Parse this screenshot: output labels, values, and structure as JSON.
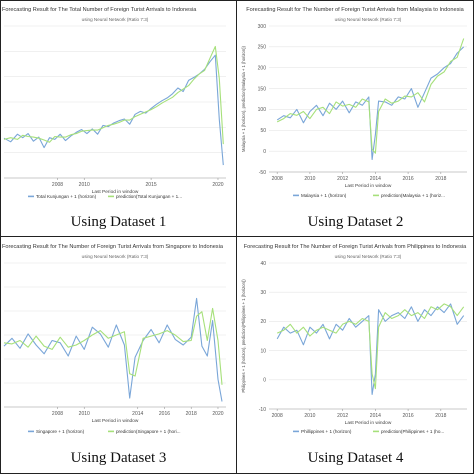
{
  "colors": {
    "series_actual": "#7aa6d8",
    "series_prediction": "#a6e07a",
    "grid": "#e6e6e6",
    "text": "#333333"
  },
  "panels": [
    {
      "caption": "Using Dataset 1"
    },
    {
      "caption": "Using Dataset 2"
    },
    {
      "caption": "Using Dataset 3"
    },
    {
      "caption": "Using Dataset 4"
    }
  ],
  "chart_data": [
    {
      "type": "line",
      "title": "Forecasting Result for The Total Number of Foreign Turist Arrivals to Indonesia",
      "subtitle": "using Neural Network (Ratio 7:3)",
      "xlabel": "Last Period in window",
      "ylabel": "",
      "xlim": [
        2004,
        2020.6
      ],
      "ylim": [
        -2,
        24
      ],
      "x_ticks": [
        "2008",
        "2010",
        "2015",
        "2020"
      ],
      "x_tick_values": [
        2008,
        2010,
        2015,
        2020
      ],
      "y_ticks": [],
      "legend_position": "bottom",
      "series": [
        {
          "name": "Total Kunjungan + 1 (horizon)",
          "color": "#7aa6d8",
          "x": [
            2004,
            2004.5,
            2005,
            2005.4,
            2005.8,
            2006.2,
            2006.6,
            2007,
            2007.4,
            2007.8,
            2008.2,
            2008.6,
            2009,
            2009.4,
            2009.8,
            2010.2,
            2010.6,
            2011,
            2011.4,
            2011.8,
            2012.2,
            2012.6,
            2013,
            2013.4,
            2013.8,
            2014.2,
            2014.6,
            2015,
            2015.4,
            2015.8,
            2016.2,
            2016.6,
            2017,
            2017.4,
            2017.8,
            2018.2,
            2018.6,
            2019,
            2019.4,
            2019.8,
            2020.1,
            2020.4
          ],
          "y": [
            4.8,
            4.2,
            5.5,
            4.9,
            5.6,
            4.3,
            5.0,
            3.2,
            4.9,
            4.6,
            5.5,
            4.4,
            5.2,
            5.8,
            6.3,
            5.6,
            6.4,
            5.5,
            7.0,
            6.8,
            7.4,
            7.8,
            8.1,
            7.2,
            8.9,
            9.4,
            9.1,
            9.9,
            10.6,
            11.2,
            11.7,
            12.4,
            13.4,
            12.8,
            14.7,
            15.2,
            15.8,
            16.6,
            17.9,
            19.0,
            8.0,
            0.2
          ]
        },
        {
          "name": "prediction(Total Kunjungan + 1...",
          "color": "#a6e07a",
          "x": [
            2004,
            2004.5,
            2005,
            2005.4,
            2005.8,
            2006.2,
            2006.6,
            2007,
            2007.4,
            2007.8,
            2008.2,
            2008.6,
            2009,
            2009.4,
            2009.8,
            2010.2,
            2010.6,
            2011,
            2011.4,
            2011.8,
            2012.2,
            2012.6,
            2013,
            2013.4,
            2013.8,
            2014.2,
            2014.6,
            2015,
            2015.4,
            2015.8,
            2016.2,
            2016.6,
            2017,
            2017.4,
            2017.8,
            2018.2,
            2018.6,
            2019,
            2019.4,
            2019.8,
            2020.1,
            2020.4
          ],
          "y": [
            4.6,
            4.9,
            4.6,
            5.3,
            5.1,
            5.0,
            4.8,
            4.5,
            4.1,
            5.1,
            5.0,
            5.0,
            5.4,
            5.6,
            6.0,
            6.1,
            6.2,
            6.2,
            6.6,
            7.0,
            7.2,
            7.5,
            7.9,
            7.9,
            8.5,
            8.9,
            9.3,
            9.7,
            10.2,
            10.8,
            11.3,
            11.8,
            12.6,
            13.2,
            13.8,
            14.9,
            15.8,
            16.4,
            18.5,
            20.5,
            15.0,
            3.8
          ]
        }
      ]
    },
    {
      "type": "line",
      "title": "Forecasting Result for The Number of Foreign Turist Arrivals from Malaysia to Indonesia",
      "subtitle": "using Neural Network (Ratio 7:3)",
      "xlabel": "Last Period in window",
      "ylabel": "Malaysia + 1 (horizon), prediction(Malaysia + 1 (horizon))",
      "xlim": [
        2007.5,
        2019.6
      ],
      "ylim": [
        -50,
        300
      ],
      "x_ticks": [
        "2008",
        "2010",
        "2012",
        "2014",
        "2016",
        "2018"
      ],
      "x_tick_values": [
        2008,
        2010,
        2012,
        2014,
        2016,
        2018
      ],
      "y_ticks": [
        "-50",
        "0",
        "50",
        "100",
        "150",
        "200",
        "250",
        "300"
      ],
      "y_tick_values": [
        -50,
        0,
        50,
        100,
        150,
        200,
        250,
        300
      ],
      "legend_position": "bottom",
      "series": [
        {
          "name": "Malaysia + 1 (horizon)",
          "color": "#7aa6d8",
          "x": [
            2008,
            2008.4,
            2008.8,
            2009.2,
            2009.6,
            2010,
            2010.4,
            2010.8,
            2011.2,
            2011.6,
            2012,
            2012.4,
            2012.8,
            2013.2,
            2013.6,
            2013.8,
            2014,
            2014.2,
            2014.6,
            2015,
            2015.4,
            2015.8,
            2016.2,
            2016.6,
            2017,
            2017.4,
            2017.8,
            2018.2,
            2018.6,
            2019,
            2019.4
          ],
          "y": [
            75,
            85,
            80,
            100,
            68,
            95,
            110,
            85,
            115,
            100,
            120,
            92,
            118,
            110,
            130,
            -20,
            40,
            120,
            118,
            110,
            130,
            125,
            150,
            105,
            140,
            175,
            185,
            200,
            210,
            235,
            250
          ]
        },
        {
          "name": "prediction(Malaysia + 1 (horiz...",
          "color": "#a6e07a",
          "x": [
            2008,
            2008.4,
            2008.8,
            2009.2,
            2009.6,
            2010,
            2010.4,
            2010.8,
            2011.2,
            2011.6,
            2012,
            2012.4,
            2012.8,
            2013.2,
            2013.6,
            2013.8,
            2014,
            2014.2,
            2014.6,
            2015,
            2015.4,
            2015.8,
            2016.2,
            2016.6,
            2017,
            2017.4,
            2017.8,
            2018.2,
            2018.6,
            2019,
            2019.4
          ],
          "y": [
            70,
            78,
            90,
            86,
            95,
            78,
            100,
            105,
            90,
            118,
            108,
            112,
            105,
            125,
            118,
            5,
            -5,
            95,
            125,
            115,
            120,
            132,
            130,
            140,
            118,
            160,
            180,
            190,
            215,
            225,
            270
          ]
        }
      ]
    },
    {
      "type": "line",
      "title": "Forecasting Result for The Number of Foreign Turist Arrivals from Singapore to Indonesia",
      "subtitle": "using Neural Network (Ratio 7:3)",
      "xlabel": "Last Period in window",
      "ylabel": "",
      "xlim": [
        2004,
        2020.6
      ],
      "ylim": [
        -1,
        12
      ],
      "x_ticks": [
        "2008",
        "2010",
        "2014",
        "2016",
        "2018",
        "2020"
      ],
      "x_tick_values": [
        2008,
        2010,
        2014,
        2016,
        2018,
        2020
      ],
      "y_ticks": [],
      "legend_position": "bottom",
      "series": [
        {
          "name": "Singapore + 1 (horizon)",
          "color": "#7aa6d8",
          "x": [
            2004,
            2004.6,
            2005.2,
            2005.8,
            2006.4,
            2007,
            2007.6,
            2008.2,
            2008.8,
            2009.4,
            2010,
            2010.6,
            2011.2,
            2011.8,
            2012.4,
            2013,
            2013.4,
            2013.8,
            2014.4,
            2015,
            2015.6,
            2016.2,
            2016.8,
            2017.4,
            2018,
            2018.4,
            2018.8,
            2019.2,
            2019.6,
            2020,
            2020.3
          ],
          "y": [
            4.5,
            5.2,
            4.3,
            5.6,
            4.6,
            3.8,
            5.0,
            4.8,
            3.6,
            5.4,
            4.2,
            6.2,
            5.6,
            4.4,
            6.4,
            4.6,
            -0.2,
            3.5,
            5.0,
            6.0,
            4.8,
            6.4,
            5.1,
            4.6,
            5.3,
            8.8,
            4.5,
            3.6,
            6.8,
            1.5,
            -0.5
          ]
        },
        {
          "name": "prediction(Singapore + 1 (hori...",
          "color": "#a6e07a",
          "x": [
            2004,
            2004.6,
            2005.2,
            2005.8,
            2006.4,
            2007,
            2007.6,
            2008.2,
            2008.8,
            2009.4,
            2010,
            2010.6,
            2011.2,
            2011.8,
            2012.4,
            2013,
            2013.4,
            2013.8,
            2014.4,
            2015,
            2015.6,
            2016.2,
            2016.8,
            2017.4,
            2018,
            2018.4,
            2018.8,
            2019.2,
            2019.6,
            2020,
            2020.3
          ],
          "y": [
            4.8,
            4.7,
            5.0,
            4.4,
            5.4,
            4.5,
            4.2,
            5.3,
            4.4,
            4.6,
            5.0,
            5.5,
            5.9,
            5.2,
            5.5,
            5.8,
            2.0,
            1.8,
            5.2,
            5.4,
            5.6,
            5.9,
            5.5,
            4.9,
            5.0,
            7.2,
            7.6,
            5.0,
            7.9,
            5.0,
            1.0
          ]
        }
      ]
    },
    {
      "type": "line",
      "title": "Forecasting Result for The Number of Foreign Turist Arrivals from Philippines to Indonesia",
      "subtitle": "using Neural Network (Ratio 7:3)",
      "xlabel": "Last Period in window",
      "ylabel": "Philippines + 1 (horizon), prediction(Philippines + 1 (horizon))",
      "xlim": [
        2007.5,
        2019.6
      ],
      "ylim": [
        -10,
        40
      ],
      "x_ticks": [
        "2008",
        "2010",
        "2012",
        "2014",
        "2016",
        "2018"
      ],
      "x_tick_values": [
        2008,
        2010,
        2012,
        2014,
        2016,
        2018
      ],
      "y_ticks": [
        "-10",
        "0",
        "10",
        "20",
        "30",
        "40"
      ],
      "y_tick_values": [
        -10,
        0,
        10,
        20,
        30,
        40
      ],
      "legend_position": "bottom",
      "series": [
        {
          "name": "Phillippines + 1 (horizon)",
          "color": "#7aa6d8",
          "x": [
            2008,
            2008.4,
            2008.8,
            2009.2,
            2009.6,
            2010,
            2010.4,
            2010.8,
            2011.2,
            2011.6,
            2012,
            2012.4,
            2012.8,
            2013.2,
            2013.6,
            2013.8,
            2014,
            2014.2,
            2014.6,
            2015,
            2015.4,
            2015.8,
            2016.2,
            2016.6,
            2017,
            2017.4,
            2017.8,
            2018.2,
            2018.6,
            2019,
            2019.4
          ],
          "y": [
            14,
            18,
            16,
            17,
            12,
            18,
            16,
            19,
            14,
            19,
            17,
            21,
            18,
            20,
            22,
            -5,
            2,
            24,
            20,
            22,
            23,
            21,
            25,
            20,
            24,
            22,
            25,
            23,
            26,
            19,
            22
          ]
        },
        {
          "name": "prediction(Philippines + 1 (ho...",
          "color": "#a6e07a",
          "x": [
            2008,
            2008.4,
            2008.8,
            2009.2,
            2009.6,
            2010,
            2010.4,
            2010.8,
            2011.2,
            2011.6,
            2012,
            2012.4,
            2012.8,
            2013.2,
            2013.6,
            2013.8,
            2014,
            2014.2,
            2014.6,
            2015,
            2015.4,
            2015.8,
            2016.2,
            2016.6,
            2017,
            2017.4,
            2017.8,
            2018.2,
            2018.6,
            2019,
            2019.4
          ],
          "y": [
            16,
            17,
            19,
            16,
            18,
            15,
            17,
            18,
            17,
            16,
            19,
            20,
            19,
            21,
            20,
            2,
            -3,
            18,
            23,
            21,
            22,
            24,
            22,
            23,
            21,
            25,
            24,
            26,
            25,
            22,
            25
          ]
        }
      ]
    }
  ]
}
